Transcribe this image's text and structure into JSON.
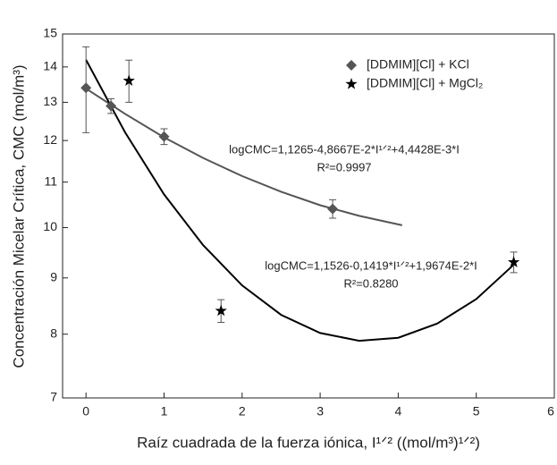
{
  "chart_data": {
    "type": "scatter",
    "y_label": "Concentración Micelar Crítica, CMC (mol/m³)",
    "x_label": "Raíz cuadrada de la fuerza iónica, I¹ᐟ²  ((mol/m³)¹ᐟ²)",
    "xlim": [
      -0.3,
      6
    ],
    "xticks": [
      0,
      1,
      2,
      3,
      4,
      5,
      6
    ],
    "ylim": [
      7,
      15
    ],
    "yticks": [
      7,
      8,
      9,
      10,
      11,
      12,
      13,
      14,
      15
    ],
    "log_y": true,
    "legend": "top-right",
    "series": [
      {
        "name": "[DDMIM][Cl] + KCl",
        "color": "#555555",
        "marker": "diamond",
        "x": [
          0,
          0.32,
          1,
          3.16
        ],
        "values": [
          13.4,
          12.9,
          12.1,
          10.4
        ],
        "errors": [
          1.2,
          0.2,
          0.2,
          0.2
        ]
      },
      {
        "name": "[DDMIM][Cl] + MgCl₂",
        "color": "#000000",
        "marker": "star",
        "x": [
          0.55,
          1.73,
          5.48
        ],
        "values": [
          13.6,
          8.4,
          9.3
        ],
        "errors": [
          0.6,
          0.2,
          0.2
        ]
      }
    ],
    "fits": [
      {
        "color": "#555555",
        "x": [
          0,
          0.5,
          1,
          1.5,
          2,
          2.5,
          3,
          3.5,
          4.05
        ],
        "values": [
          13.38,
          12.69,
          12.08,
          11.57,
          11.14,
          10.78,
          10.48,
          10.25,
          10.05
        ]
      },
      {
        "color": "#000000",
        "x": [
          0,
          0.5,
          1,
          1.5,
          2,
          2.5,
          3,
          3.5,
          4,
          4.5,
          5,
          5.5
        ],
        "values": [
          14.21,
          12.21,
          10.72,
          9.64,
          8.86,
          8.33,
          8.02,
          7.89,
          7.94,
          8.18,
          8.61,
          9.28
        ]
      }
    ],
    "annotations": [
      "logCMC=1,1265-4,8667E-2*I¹ᐟ²+4,4428E-3*I",
      "R²=0.9997",
      "logCMC=1,1526-0,1419*I¹ᐟ²+1,9674E-2*I",
      "R²=0.8280"
    ]
  }
}
